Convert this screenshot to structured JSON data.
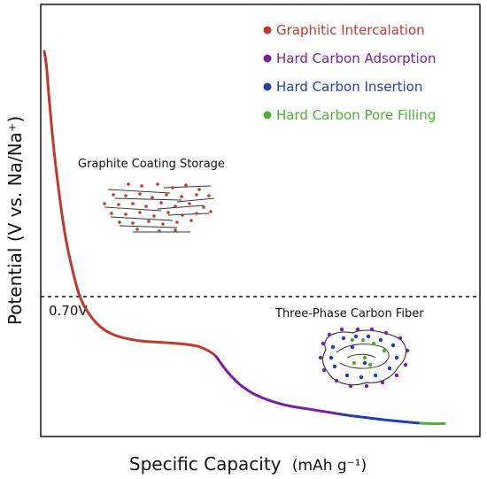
{
  "chart_data": {
    "type": "line",
    "xlabel": "Specific Capacity",
    "xlabel_unit": "(mAh g⁻¹)",
    "ylabel": "Potential (V vs. Na/Na⁺)",
    "grid": false,
    "legend_position": "top-right",
    "reference_line": {
      "label": "0.70V",
      "style": "dashed"
    },
    "annotations": [
      "Graphite Coating Storage",
      "Three-Phase Carbon Fiber"
    ],
    "series": [
      {
        "name": "Graphitic Intercalation",
        "color": "#c0392b",
        "x": [
          0.0,
          0.5,
          1.0,
          2.0,
          3.0,
          5.0,
          7.0,
          9.0,
          12.0,
          15.0,
          18.0,
          22.0,
          26.0,
          30.0,
          34.0,
          38.0,
          40.0,
          42.0,
          43.0
        ],
        "y": [
          1.0,
          0.97,
          0.9,
          0.78,
          0.68,
          0.52,
          0.42,
          0.34,
          0.29,
          0.26,
          0.245,
          0.235,
          0.23,
          0.228,
          0.225,
          0.22,
          0.212,
          0.2,
          0.19
        ]
      },
      {
        "name": "Hard Carbon Adsorption",
        "color": "#7b1fa2",
        "x": [
          43.0,
          45.0,
          47.0,
          49.0,
          51.0,
          53.0,
          56.0,
          60.0,
          64.0,
          67.0,
          70.0,
          74.0
        ],
        "y": [
          0.19,
          0.16,
          0.135,
          0.115,
          0.1,
          0.088,
          0.075,
          0.062,
          0.055,
          0.05,
          0.045,
          0.038
        ]
      },
      {
        "name": "Hard Carbon Insertion",
        "color": "#1f3fb4",
        "x": [
          74.0,
          78.0,
          82.0,
          86.0,
          90.0,
          94.0
        ],
        "y": [
          0.038,
          0.032,
          0.027,
          0.022,
          0.018,
          0.014
        ]
      },
      {
        "name": "Hard Carbon Pore Filling",
        "color": "#4caf35",
        "x": [
          94.0,
          97.0,
          100.0
        ],
        "y": [
          0.014,
          0.013,
          0.013
        ]
      }
    ]
  }
}
